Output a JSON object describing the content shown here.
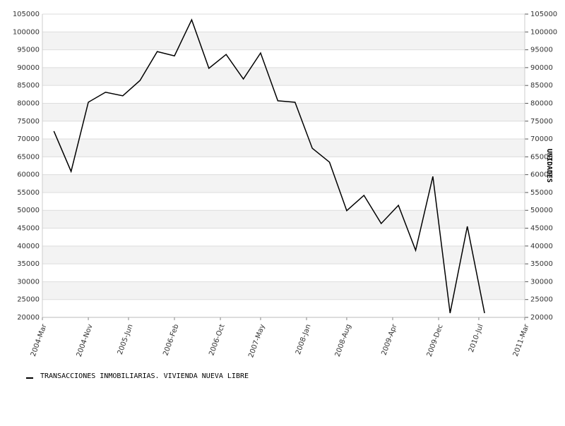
{
  "chart_data": {
    "type": "line",
    "x": [
      "2004-05",
      "2004-08",
      "2004-11",
      "2005-02",
      "2005-05",
      "2005-08",
      "2005-11",
      "2006-02",
      "2006-05",
      "2006-08",
      "2006-11",
      "2007-02",
      "2007-05",
      "2007-08",
      "2007-11",
      "2008-02",
      "2008-05",
      "2008-08",
      "2008-11",
      "2009-02",
      "2009-05",
      "2009-08",
      "2009-11",
      "2010-02",
      "2010-05",
      "2010-08"
    ],
    "series": [
      {
        "name": "TRANSACCIONES INMOBILIARIAS. VIVIENDA NUEVA LIBRE",
        "color": "#000000",
        "values": [
          72200,
          60900,
          80300,
          83100,
          82100,
          86400,
          94500,
          93300,
          103400,
          89800,
          93700,
          86800,
          94100,
          80700,
          80300,
          67400,
          63500,
          49900,
          54200,
          46300,
          51400,
          38800,
          59500,
          21200,
          45500,
          21200
        ]
      }
    ],
    "xlim": [
      "2004-03",
      "2011-03"
    ],
    "xticks": [
      {
        "value": "2004-03",
        "label": "2004-Mar"
      },
      {
        "value": "2004-11",
        "label": "2004-Nov"
      },
      {
        "value": "2005-06",
        "label": "2005-Jun"
      },
      {
        "value": "2006-02",
        "label": "2006-Feb"
      },
      {
        "value": "2006-10",
        "label": "2006-Oct"
      },
      {
        "value": "2007-05",
        "label": "2007-May"
      },
      {
        "value": "2008-01",
        "label": "2008-Jan"
      },
      {
        "value": "2008-08",
        "label": "2008-Aug"
      },
      {
        "value": "2009-04",
        "label": "2009-Apr"
      },
      {
        "value": "2009-12",
        "label": "2009-Dec"
      },
      {
        "value": "2010-07",
        "label": "2010-Jul"
      },
      {
        "value": "2011-03",
        "label": "2011-Mar"
      }
    ],
    "ylim": [
      20000,
      105000
    ],
    "yticks": [
      20000,
      25000,
      30000,
      35000,
      40000,
      45000,
      50000,
      55000,
      60000,
      65000,
      70000,
      75000,
      80000,
      85000,
      90000,
      95000,
      100000,
      105000
    ],
    "y2lim": [
      20000,
      105000
    ],
    "y2ticks": [
      20000,
      25000,
      30000,
      35000,
      40000,
      45000,
      50000,
      55000,
      60000,
      65000,
      70000,
      75000,
      80000,
      85000,
      90000,
      95000,
      100000,
      105000
    ],
    "y2label": "UNIDADES",
    "grid": true
  }
}
